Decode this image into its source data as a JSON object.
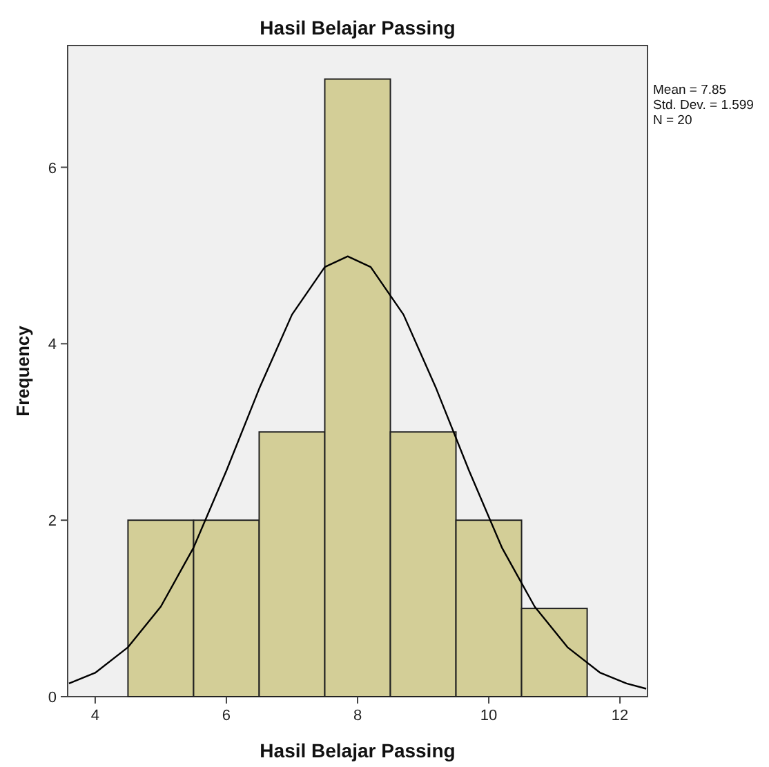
{
  "chart_data": {
    "type": "histogram",
    "title": "Hasil Belajar Passing",
    "xlabel": "Hasil Belajar Passing",
    "ylabel": "Frequency",
    "bins": [
      4.5,
      5.5,
      6.5,
      7.5,
      8.5,
      9.5,
      10.5,
      11.5
    ],
    "values": [
      2,
      2,
      3,
      7,
      3,
      2,
      1
    ],
    "color": "#d3ce97",
    "series": [
      {
        "type": "line",
        "color": "#000000",
        "x": [
          3.6,
          4.0,
          4.5,
          5.0,
          5.5,
          6.0,
          6.5,
          7.0,
          7.5,
          7.85,
          8.2,
          8.7,
          9.2,
          9.7,
          10.2,
          10.7,
          11.2,
          11.7,
          12.1,
          12.4
        ],
        "values": [
          0.15,
          0.27,
          0.56,
          1.02,
          1.69,
          2.56,
          3.49,
          4.33,
          4.87,
          4.99,
          4.87,
          4.33,
          3.49,
          2.56,
          1.69,
          1.02,
          0.56,
          0.27,
          0.15,
          0.09
        ]
      }
    ],
    "xlim": [
      3.58,
      12.42
    ],
    "xticks": [
      4,
      6,
      8,
      10,
      12
    ],
    "ylim": [
      0,
      7.38
    ],
    "yticks": [
      0,
      2,
      4,
      6
    ],
    "grid": false,
    "annotations": [
      "Mean = 7.85",
      "Std. Dev. = 1.599",
      "N = 20"
    ]
  }
}
